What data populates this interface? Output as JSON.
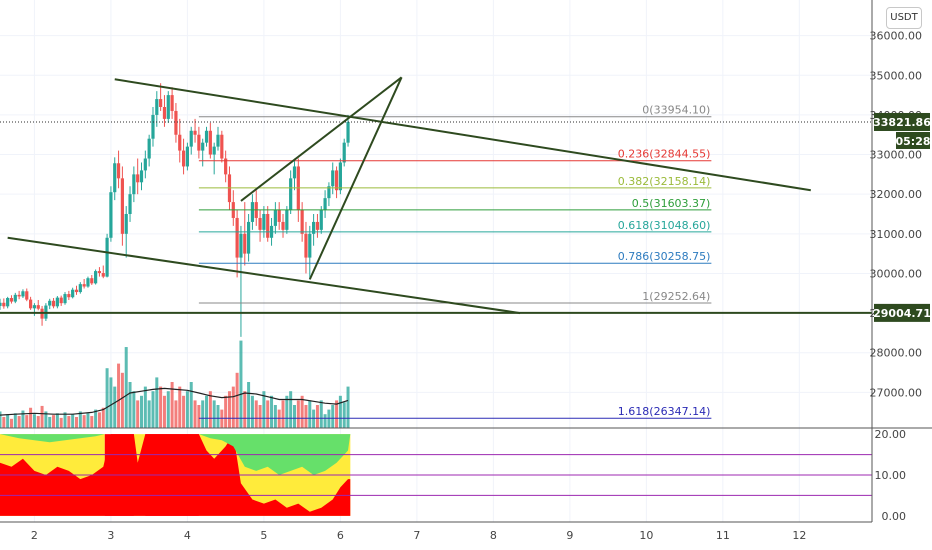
{
  "currency_button": "USDT",
  "chart_data": {
    "type": "candlestick",
    "instrument_currency": "USDT",
    "price_axis": {
      "range": [
        26100,
        36900
      ],
      "ticks": [
        "36000.00",
        "35000.00",
        "34000.00",
        "33000.00",
        "32000.00",
        "31000.00",
        "30000.00",
        "29000.00",
        "28000.00",
        "27000.00"
      ],
      "tick_values": [
        36000,
        35000,
        34000,
        33000,
        32000,
        31000,
        30000,
        29000,
        28000,
        27000
      ]
    },
    "x_axis": {
      "range": [
        1.55,
        12.95
      ],
      "ticks": [
        "2",
        "3",
        "4",
        "5",
        "6",
        "7",
        "8",
        "9",
        "10",
        "11",
        "12"
      ],
      "tick_values": [
        2,
        3,
        4,
        5,
        6,
        7,
        8,
        9,
        10,
        11,
        12
      ]
    },
    "current_price": "33821.86",
    "countdown": "05:28",
    "support_level": {
      "price": 29004.71,
      "label": "29004.71"
    },
    "fibonacci": [
      {
        "label": "0(33954.10)",
        "price": 33954.1,
        "color": "#888888"
      },
      {
        "label": "0.236(32844.55)",
        "price": 32844.55,
        "color": "#e53935"
      },
      {
        "label": "0.382(32158.14)",
        "price": 32158.14,
        "color": "#9bbb3b"
      },
      {
        "label": "0.5(31603.37)",
        "price": 31603.37,
        "color": "#2e9e3a"
      },
      {
        "label": "0.618(31048.60)",
        "price": 31048.6,
        "color": "#26a69a"
      },
      {
        "label": "0.786(30258.75)",
        "price": 30258.75,
        "color": "#2d7bbf"
      },
      {
        "label": "1(29252.64)",
        "price": 29252.64,
        "color": "#888888"
      },
      {
        "label": "1.618(26347.14)",
        "price": 26347.14,
        "color": "#2b2bb5"
      }
    ],
    "fib_x_range": [
      4.15,
      10.85
    ],
    "trendlines": [
      {
        "name": "upper-channel",
        "from": [
          3.05,
          34900
        ],
        "to": [
          12.15,
          32100
        ]
      },
      {
        "name": "lower-channel",
        "from": [
          1.65,
          30900
        ],
        "to": [
          8.35,
          29000
        ]
      },
      {
        "name": "wedge-lower",
        "from": [
          5.6,
          29850
        ],
        "to": [
          6.8,
          34950
        ]
      },
      {
        "name": "wedge-upper",
        "from": [
          4.7,
          31830
        ],
        "to": [
          6.8,
          34950
        ]
      }
    ],
    "candles": [
      [
        1.55,
        29180,
        29360,
        29080,
        29260
      ],
      [
        1.6,
        29260,
        29370,
        29110,
        29170
      ],
      [
        1.65,
        29170,
        29410,
        29120,
        29380
      ],
      [
        1.7,
        29380,
        29450,
        29240,
        29290
      ],
      [
        1.75,
        29290,
        29510,
        29250,
        29460
      ],
      [
        1.8,
        29460,
        29560,
        29350,
        29420
      ],
      [
        1.85,
        29420,
        29600,
        29380,
        29550
      ],
      [
        1.9,
        29550,
        29620,
        29300,
        29340
      ],
      [
        1.95,
        29340,
        29410,
        29080,
        29120
      ],
      [
        2.0,
        29120,
        29250,
        28930,
        29200
      ],
      [
        2.05,
        29200,
        29330,
        29070,
        29110
      ],
      [
        2.1,
        29110,
        29180,
        28680,
        28860
      ],
      [
        2.15,
        28860,
        29250,
        28800,
        29190
      ],
      [
        2.2,
        29190,
        29360,
        29100,
        29310
      ],
      [
        2.25,
        29310,
        29380,
        29120,
        29170
      ],
      [
        2.3,
        29170,
        29430,
        29120,
        29390
      ],
      [
        2.35,
        29390,
        29440,
        29180,
        29250
      ],
      [
        2.4,
        29250,
        29530,
        29210,
        29480
      ],
      [
        2.45,
        29480,
        29560,
        29330,
        29400
      ],
      [
        2.5,
        29400,
        29640,
        29370,
        29590
      ],
      [
        2.55,
        29590,
        29690,
        29460,
        29530
      ],
      [
        2.6,
        29530,
        29780,
        29490,
        29730
      ],
      [
        2.65,
        29730,
        29860,
        29620,
        29670
      ],
      [
        2.7,
        29670,
        29920,
        29640,
        29880
      ],
      [
        2.75,
        29880,
        29960,
        29710,
        29750
      ],
      [
        2.8,
        29750,
        30100,
        29720,
        30060
      ],
      [
        2.85,
        30060,
        30160,
        29920,
        30010
      ],
      [
        2.9,
        30010,
        30200,
        29880,
        29920
      ],
      [
        2.95,
        29920,
        31000,
        29900,
        30900
      ],
      [
        3.0,
        30900,
        32200,
        30800,
        32050
      ],
      [
        3.05,
        32050,
        32930,
        31850,
        32780
      ],
      [
        3.1,
        32780,
        33100,
        32150,
        32400
      ],
      [
        3.15,
        32400,
        32700,
        30700,
        31000
      ],
      [
        3.2,
        31000,
        31700,
        30400,
        31500
      ],
      [
        3.25,
        31500,
        32200,
        31300,
        32000
      ],
      [
        3.3,
        32000,
        32700,
        31800,
        32500
      ],
      [
        3.35,
        32500,
        32900,
        32000,
        32300
      ],
      [
        3.4,
        32300,
        32800,
        32100,
        32600
      ],
      [
        3.45,
        32600,
        33100,
        32400,
        32900
      ],
      [
        3.5,
        32900,
        33500,
        32700,
        33400
      ],
      [
        3.55,
        33400,
        34200,
        33200,
        34000
      ],
      [
        3.6,
        34000,
        34600,
        33700,
        34400
      ],
      [
        3.65,
        34400,
        34800,
        34100,
        34200
      ],
      [
        3.7,
        34200,
        34500,
        33700,
        33900
      ],
      [
        3.75,
        33900,
        34600,
        33800,
        34500
      ],
      [
        3.8,
        34500,
        34700,
        33900,
        34100
      ],
      [
        3.85,
        34100,
        34300,
        33300,
        33500
      ],
      [
        3.9,
        33500,
        33900,
        32800,
        33100
      ],
      [
        3.95,
        33100,
        33400,
        32500,
        32700
      ],
      [
        4.0,
        32700,
        33300,
        32600,
        33200
      ],
      [
        4.05,
        33200,
        33700,
        33000,
        33600
      ],
      [
        4.1,
        33600,
        33900,
        33300,
        33500
      ],
      [
        4.15,
        33500,
        33700,
        32900,
        33100
      ],
      [
        4.2,
        33100,
        33400,
        32700,
        33300
      ],
      [
        4.25,
        33300,
        33700,
        33200,
        33600
      ],
      [
        4.3,
        33600,
        33800,
        32900,
        33000
      ],
      [
        4.35,
        33000,
        33300,
        32500,
        33200
      ],
      [
        4.4,
        33200,
        33700,
        33100,
        33500
      ],
      [
        4.45,
        33500,
        33600,
        32800,
        32900
      ],
      [
        4.5,
        32900,
        33100,
        32300,
        32500
      ],
      [
        4.55,
        32500,
        32700,
        31600,
        31800
      ],
      [
        4.6,
        31800,
        32100,
        31200,
        31400
      ],
      [
        4.65,
        31400,
        31600,
        29900,
        30400
      ],
      [
        4.7,
        30400,
        31200,
        28400,
        31000
      ],
      [
        4.75,
        31000,
        31800,
        30200,
        30500
      ],
      [
        4.8,
        30500,
        31500,
        30300,
        31300
      ],
      [
        4.85,
        31300,
        32000,
        31100,
        31800
      ],
      [
        4.9,
        31800,
        32100,
        31200,
        31400
      ],
      [
        4.95,
        31400,
        31600,
        30800,
        31100
      ],
      [
        5.0,
        31100,
        31700,
        30900,
        31500
      ],
      [
        5.05,
        31500,
        31700,
        30800,
        30900
      ],
      [
        5.1,
        30900,
        31400,
        30700,
        31200
      ],
      [
        5.15,
        31200,
        31800,
        31000,
        31600
      ],
      [
        5.2,
        31600,
        31800,
        31100,
        31300
      ],
      [
        5.25,
        31300,
        31500,
        30900,
        31100
      ],
      [
        5.3,
        31100,
        31700,
        31000,
        31600
      ],
      [
        5.35,
        31600,
        32600,
        31500,
        32400
      ],
      [
        5.4,
        32400,
        32900,
        32100,
        32700
      ],
      [
        5.45,
        32700,
        32900,
        31300,
        31600
      ],
      [
        5.5,
        31600,
        31800,
        30800,
        31000
      ],
      [
        5.55,
        31000,
        31300,
        30000,
        30400
      ],
      [
        5.6,
        30400,
        31200,
        29850,
        31000
      ],
      [
        5.65,
        31000,
        31500,
        30700,
        31300
      ],
      [
        5.7,
        31300,
        31500,
        30900,
        31100
      ],
      [
        5.75,
        31100,
        31700,
        31000,
        31600
      ],
      [
        5.8,
        31600,
        32100,
        31400,
        31900
      ],
      [
        5.85,
        31900,
        32300,
        31700,
        32200
      ],
      [
        5.9,
        32200,
        32800,
        32000,
        32600
      ],
      [
        5.95,
        32600,
        32700,
        31900,
        32100
      ],
      [
        6.0,
        32100,
        32900,
        32000,
        32800
      ],
      [
        6.05,
        32800,
        33400,
        32700,
        33300
      ],
      [
        6.1,
        33300,
        34000,
        33200,
        33822
      ]
    ],
    "volume": [
      [
        1.55,
        18
      ],
      [
        1.6,
        12
      ],
      [
        1.65,
        15
      ],
      [
        1.7,
        10
      ],
      [
        1.75,
        16
      ],
      [
        1.8,
        13
      ],
      [
        1.85,
        19
      ],
      [
        1.9,
        14
      ],
      [
        1.95,
        22
      ],
      [
        2.0,
        15
      ],
      [
        2.05,
        13
      ],
      [
        2.1,
        24
      ],
      [
        2.15,
        18
      ],
      [
        2.2,
        12
      ],
      [
        2.25,
        14
      ],
      [
        2.3,
        16
      ],
      [
        2.35,
        11
      ],
      [
        2.4,
        17
      ],
      [
        2.45,
        13
      ],
      [
        2.5,
        15
      ],
      [
        2.55,
        12
      ],
      [
        2.6,
        18
      ],
      [
        2.65,
        14
      ],
      [
        2.7,
        16
      ],
      [
        2.75,
        13
      ],
      [
        2.8,
        20
      ],
      [
        2.85,
        17
      ],
      [
        2.9,
        22
      ],
      [
        2.95,
        65
      ],
      [
        3.0,
        55
      ],
      [
        3.05,
        45
      ],
      [
        3.1,
        70
      ],
      [
        3.15,
        60
      ],
      [
        3.2,
        88
      ],
      [
        3.25,
        50
      ],
      [
        3.3,
        40
      ],
      [
        3.35,
        30
      ],
      [
        3.4,
        35
      ],
      [
        3.45,
        45
      ],
      [
        3.5,
        30
      ],
      [
        3.55,
        40
      ],
      [
        3.6,
        55
      ],
      [
        3.65,
        45
      ],
      [
        3.7,
        35
      ],
      [
        3.75,
        40
      ],
      [
        3.8,
        50
      ],
      [
        3.85,
        30
      ],
      [
        3.9,
        45
      ],
      [
        3.95,
        35
      ],
      [
        4.0,
        40
      ],
      [
        4.05,
        50
      ],
      [
        4.1,
        30
      ],
      [
        4.15,
        25
      ],
      [
        4.2,
        30
      ],
      [
        4.25,
        35
      ],
      [
        4.3,
        40
      ],
      [
        4.35,
        30
      ],
      [
        4.4,
        25
      ],
      [
        4.45,
        20
      ],
      [
        4.5,
        35
      ],
      [
        4.55,
        40
      ],
      [
        4.6,
        45
      ],
      [
        4.65,
        60
      ],
      [
        4.7,
        95
      ],
      [
        4.75,
        40
      ],
      [
        4.8,
        50
      ],
      [
        4.85,
        35
      ],
      [
        4.9,
        30
      ],
      [
        4.95,
        25
      ],
      [
        5.0,
        40
      ],
      [
        5.05,
        30
      ],
      [
        5.1,
        35
      ],
      [
        5.15,
        25
      ],
      [
        5.2,
        20
      ],
      [
        5.25,
        30
      ],
      [
        5.3,
        35
      ],
      [
        5.35,
        40
      ],
      [
        5.4,
        25
      ],
      [
        5.45,
        30
      ],
      [
        5.5,
        35
      ],
      [
        5.55,
        25
      ],
      [
        5.6,
        30
      ],
      [
        5.65,
        20
      ],
      [
        5.7,
        25
      ],
      [
        5.75,
        30
      ],
      [
        5.8,
        15
      ],
      [
        5.85,
        20
      ],
      [
        5.9,
        25
      ],
      [
        5.95,
        30
      ],
      [
        6.0,
        35
      ],
      [
        6.05,
        28
      ],
      [
        6.1,
        45
      ]
    ],
    "volume_ma": [
      [
        1.55,
        14
      ],
      [
        1.75,
        15
      ],
      [
        2.0,
        16
      ],
      [
        2.25,
        15
      ],
      [
        2.5,
        15
      ],
      [
        2.75,
        17
      ],
      [
        2.9,
        20
      ],
      [
        3.0,
        25
      ],
      [
        3.1,
        30
      ],
      [
        3.25,
        38
      ],
      [
        3.4,
        40
      ],
      [
        3.55,
        42
      ],
      [
        3.7,
        43
      ],
      [
        3.85,
        42
      ],
      [
        4.0,
        41
      ],
      [
        4.15,
        38
      ],
      [
        4.3,
        35
      ],
      [
        4.45,
        33
      ],
      [
        4.6,
        34
      ],
      [
        4.75,
        38
      ],
      [
        4.9,
        37
      ],
      [
        5.05,
        34
      ],
      [
        5.2,
        31
      ],
      [
        5.35,
        31
      ],
      [
        5.5,
        31
      ],
      [
        5.65,
        29
      ],
      [
        5.8,
        27
      ],
      [
        5.95,
        26
      ],
      [
        6.1,
        30
      ]
    ],
    "oscillator": {
      "range": [
        -1.5,
        21.5
      ],
      "ticks": [
        "20.00",
        "10.00",
        "0.00"
      ],
      "tick_values": [
        20,
        10,
        0
      ],
      "levels": [
        15,
        10,
        5
      ],
      "level_color": "#9c27b0",
      "segments": [
        {
          "from": 1.55,
          "to": 2.92,
          "value": 20,
          "color": "#ffeb3b"
        },
        {
          "from": 2.92,
          "to": 3.3,
          "value": 20,
          "color": "#ff0000"
        },
        {
          "from": 3.3,
          "to": 3.45,
          "value": 20,
          "color": "#ffeb3b"
        },
        {
          "from": 3.45,
          "to": 4.15,
          "value": 20,
          "color": "#ff0000"
        },
        {
          "from": 4.15,
          "to": 4.6,
          "value": 20,
          "color": "#ffeb3b"
        },
        {
          "from": 4.6,
          "to": 6.13,
          "value": 20,
          "color": "#ffeb3b"
        }
      ],
      "red_top": [
        [
          1.55,
          13
        ],
        [
          1.7,
          12
        ],
        [
          1.85,
          14
        ],
        [
          2.0,
          11
        ],
        [
          2.15,
          10
        ],
        [
          2.3,
          12
        ],
        [
          2.45,
          11
        ],
        [
          2.6,
          9
        ],
        [
          2.75,
          10
        ],
        [
          2.9,
          12
        ],
        [
          3.0,
          20
        ],
        [
          3.3,
          20
        ],
        [
          3.35,
          13
        ],
        [
          3.45,
          20
        ],
        [
          4.15,
          20
        ],
        [
          4.25,
          16
        ],
        [
          4.35,
          14
        ],
        [
          4.5,
          17
        ],
        [
          4.6,
          20
        ],
        [
          4.7,
          8
        ],
        [
          4.85,
          4
        ],
        [
          5.0,
          3
        ],
        [
          5.15,
          4
        ],
        [
          5.3,
          2
        ],
        [
          5.45,
          3
        ],
        [
          5.6,
          1
        ],
        [
          5.75,
          2
        ],
        [
          5.9,
          4
        ],
        [
          6.0,
          7
        ],
        [
          6.1,
          9
        ]
      ],
      "green_bottom": [
        [
          1.55,
          20
        ],
        [
          1.8,
          19
        ],
        [
          2.0,
          18.5
        ],
        [
          2.2,
          18
        ],
        [
          2.4,
          18.5
        ],
        [
          2.6,
          19
        ],
        [
          2.8,
          19.5
        ],
        [
          2.92,
          20
        ],
        [
          4.15,
          20
        ],
        [
          4.3,
          19
        ],
        [
          4.45,
          18.5
        ],
        [
          4.6,
          17
        ],
        [
          4.75,
          12
        ],
        [
          4.9,
          11
        ],
        [
          5.05,
          12
        ],
        [
          5.2,
          10
        ],
        [
          5.35,
          11
        ],
        [
          5.5,
          12
        ],
        [
          5.65,
          10
        ],
        [
          5.8,
          11
        ],
        [
          5.95,
          13
        ],
        [
          6.1,
          16
        ]
      ]
    }
  }
}
